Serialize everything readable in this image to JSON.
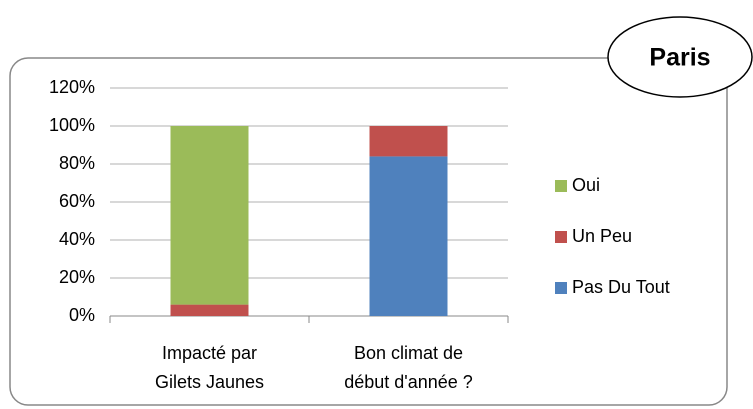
{
  "chart_data": {
    "type": "stacked_bar",
    "title": "Paris",
    "categories": [
      [
        "Impacté par",
        "Gilets Jaunes"
      ],
      [
        "Bon climat de",
        "début d'année ?"
      ]
    ],
    "series": [
      {
        "name": "Pas Du Tout",
        "color": "#4f81bd",
        "values": [
          0,
          84
        ]
      },
      {
        "name": "Un Peu",
        "color": "#c0504d",
        "values": [
          6,
          16
        ]
      },
      {
        "name": "Oui",
        "color": "#9bbb59",
        "values": [
          94,
          0
        ]
      }
    ],
    "ylim": [
      0,
      120
    ],
    "yticks": [
      {
        "value": 0,
        "label": "0%"
      },
      {
        "value": 20,
        "label": "20%"
      },
      {
        "value": 40,
        "label": "40%"
      },
      {
        "value": 60,
        "label": "60%"
      },
      {
        "value": 80,
        "label": "80%"
      },
      {
        "value": 100,
        "label": "100%"
      },
      {
        "value": 120,
        "label": "120%"
      }
    ],
    "grid": true,
    "legend": "right"
  }
}
